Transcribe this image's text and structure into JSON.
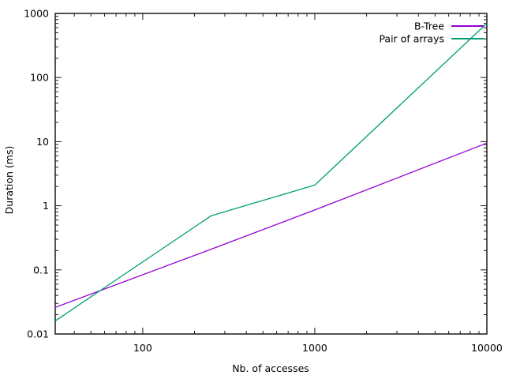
{
  "chart_data": {
    "type": "line",
    "title": "",
    "xlabel": "Nb. of accesses",
    "ylabel": "Duration (ms)",
    "x_scale": "log",
    "y_scale": "log",
    "xlim": [
      31,
      10000
    ],
    "ylim": [
      0.01,
      1000
    ],
    "x_ticks": [
      100,
      1000,
      10000
    ],
    "x_tick_labels": [
      "100",
      "1000",
      "10000"
    ],
    "y_ticks": [
      0.01,
      0.1,
      1,
      10,
      100,
      1000
    ],
    "y_tick_labels": [
      "0.01",
      "0.1",
      "1",
      "10",
      "100",
      "1000"
    ],
    "grid": false,
    "legend_position": "top-right-inside",
    "series": [
      {
        "name": "B-Tree",
        "color": "#9400d3",
        "x": [
          31,
          250,
          1000,
          10000
        ],
        "y": [
          0.026,
          0.21,
          0.86,
          9.5
        ]
      },
      {
        "name": "Pair of arrays",
        "color": "#009e73",
        "x": [
          31,
          250,
          1000,
          10000
        ],
        "y": [
          0.016,
          0.7,
          2.1,
          700
        ]
      }
    ]
  },
  "colors": {
    "background": "#ffffff",
    "axis": "#1a1a1a",
    "text": "#000000"
  }
}
